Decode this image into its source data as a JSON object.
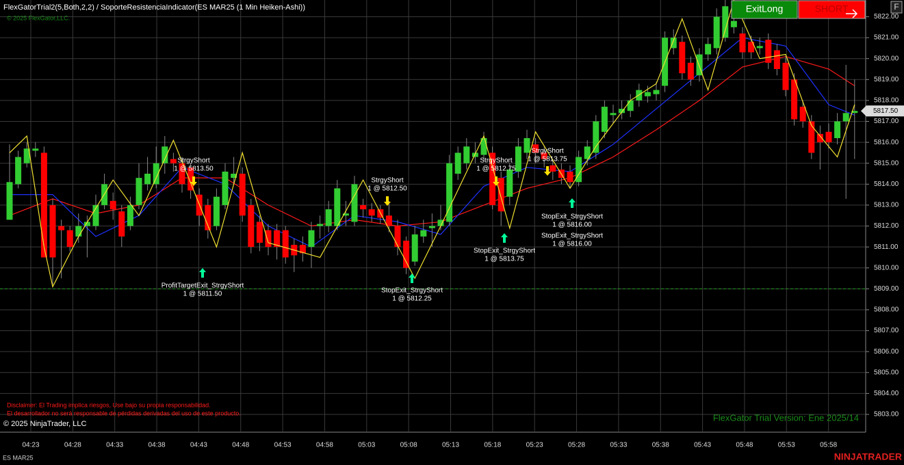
{
  "header": {
    "title": "FlexGatorTrial2(5,Both,2,2) / SoporteResistenciaIndicator(ES MAR25 (1 Min Heiken-Ashi))",
    "subtitle": "© 2025 FlexGator,LLC.",
    "buttons": [
      "ExitLong",
      "SHORT"
    ],
    "corner_button": "F"
  },
  "chart_data": {
    "type": "candlestick",
    "open": [
      5812.3,
      5814.0,
      5815.0,
      5815.6,
      5815.5,
      5813.0,
      5812.0,
      5811.8,
      5811.5,
      5812.0,
      5812.0,
      5813.0,
      5813.2,
      5812.7,
      5812.0,
      5813.0,
      5814.0,
      5814.0,
      5815.0,
      5815.2,
      5815.0,
      5814.8,
      5813.5,
      5813.0,
      5812.0,
      5813.0,
      5814.3,
      5814.5,
      5813.0,
      5812.2,
      5811.8,
      5811.8,
      5811.8,
      5811.1,
      5811.1,
      5811.0,
      5812.0,
      5812.0,
      5812.0,
      5812.5,
      5812.2,
      5813.0,
      5812.8,
      5812.8,
      5812.5,
      5812.0,
      5811.3,
      5810.3,
      5811.5,
      5811.9,
      5812.0,
      5812.2,
      5814.5,
      5815.0,
      5815.3,
      5815.4,
      5815.5,
      5814.3,
      5813.4,
      5814.6,
      5815.5,
      5815.9,
      5815.5,
      5814.9,
      5814.7,
      5814.6,
      5814.1,
      5815.2,
      5815.5,
      5816.5,
      5817.3,
      5817.4,
      5817.5,
      5818.0,
      5818.2,
      5818.3,
      5818.7,
      5820.5,
      5820.8,
      5819.8,
      5819.2,
      5820.2,
      5820.5,
      5821.0,
      5821.5,
      5821.2,
      5820.8,
      5820.5,
      5820.9,
      5820.4,
      5819.8,
      5819.0,
      5817.7,
      5817.0,
      5816.4,
      5816.5,
      5816.2,
      5817.0,
      5817.4
    ],
    "high": [
      5815.9,
      5815.6,
      5816.0,
      5816.0,
      5815.8,
      5813.3,
      5812.3,
      5812.0,
      5812.6,
      5812.5,
      5813.5,
      5814.5,
      5813.6,
      5813.0,
      5813.4,
      5815.0,
      5815.3,
      5815.8,
      5816.3,
      5815.5,
      5815.3,
      5815.0,
      5813.8,
      5813.3,
      5813.8,
      5815.0,
      5815.3,
      5814.8,
      5813.3,
      5812.5,
      5812.1,
      5812.1,
      5812.0,
      5811.4,
      5811.5,
      5812.2,
      5812.5,
      5813.2,
      5814.2,
      5813.2,
      5814.4,
      5813.3,
      5813.1,
      5813.0,
      5813.2,
      5812.3,
      5811.5,
      5812.0,
      5812.3,
      5812.6,
      5813.0,
      5815.4,
      5815.8,
      5816.2,
      5816.0,
      5816.5,
      5815.8,
      5814.6,
      5815.0,
      5816.2,
      5816.6,
      5816.2,
      5815.8,
      5815.2,
      5815.0,
      5814.9,
      5815.6,
      5816.1,
      5817.3,
      5818.0,
      5817.8,
      5818.0,
      5818.3,
      5818.8,
      5818.7,
      5818.9,
      5821.3,
      5821.4,
      5821.1,
      5820.1,
      5820.5,
      5821.0,
      5822.4,
      5822.8,
      5822.2,
      5821.5,
      5821.1,
      5821.0,
      5821.2,
      5820.7,
      5820.1,
      5819.3,
      5818.0,
      5817.3,
      5816.8,
      5816.9,
      5817.4,
      5819.7,
      5819.0
    ],
    "low": [
      5812.3,
      5813.8,
      5814.8,
      5815.3,
      5810.5,
      5809.2,
      5809.5,
      5810.8,
      5811.2,
      5810.5,
      5811.8,
      5812.8,
      5812.3,
      5811.0,
      5811.8,
      5812.8,
      5813.7,
      5813.8,
      5814.5,
      5814.6,
      5813.6,
      5813.3,
      5812.0,
      5811.4,
      5811.8,
      5812.8,
      5814.0,
      5812.2,
      5810.7,
      5810.8,
      5810.6,
      5810.4,
      5810.2,
      5809.8,
      5810.3,
      5810.0,
      5811.4,
      5811.7,
      5811.8,
      5812.0,
      5812.0,
      5812.4,
      5812.2,
      5812.1,
      5811.7,
      5810.6,
      5809.7,
      5810.1,
      5811.2,
      5811.0,
      5811.8,
      5812.0,
      5814.2,
      5814.7,
      5815.0,
      5815.1,
      5812.8,
      5812.0,
      5813.0,
      5814.3,
      5815.2,
      5815.0,
      5814.8,
      5814.2,
      5814.0,
      5813.8,
      5813.9,
      5814.9,
      5815.2,
      5816.2,
      5816.9,
      5817.1,
      5817.2,
      5817.7,
      5817.9,
      5818.0,
      5818.4,
      5820.2,
      5819.0,
      5818.7,
      5818.9,
      5819.9,
      5820.2,
      5820.8,
      5821.2,
      5820.0,
      5820.0,
      5820.2,
      5819.5,
      5819.2,
      5818.2,
      5816.8,
      5816.7,
      5815.2,
      5814.7,
      5815.7,
      5815.9,
      5813.3,
      5815.2
    ],
    "close": [
      5814.1,
      5815.3,
      5815.7,
      5815.7,
      5810.5,
      5810.5,
      5811.8,
      5811.0,
      5812.0,
      5812.2,
      5813.0,
      5814.0,
      5812.8,
      5811.5,
      5813.0,
      5814.3,
      5814.5,
      5815.0,
      5815.8,
      5815.0,
      5814.0,
      5813.7,
      5812.5,
      5811.8,
      5813.4,
      5814.6,
      5814.5,
      5812.5,
      5811.0,
      5811.2,
      5811.0,
      5811.0,
      5810.5,
      5810.6,
      5810.7,
      5811.8,
      5812.1,
      5812.8,
      5813.8,
      5812.6,
      5814.0,
      5812.8,
      5812.5,
      5812.4,
      5812.0,
      5811.0,
      5810.0,
      5811.6,
      5811.8,
      5812.0,
      5812.3,
      5815.0,
      5815.5,
      5815.8,
      5815.5,
      5816.2,
      5813.0,
      5812.7,
      5814.7,
      5815.8,
      5816.2,
      5815.5,
      5815.2,
      5814.6,
      5814.3,
      5814.1,
      5815.3,
      5815.8,
      5817.0,
      5817.7,
      5817.4,
      5817.6,
      5818.0,
      5818.5,
      5818.4,
      5818.5,
      5821.0,
      5821.0,
      5819.3,
      5819.0,
      5820.2,
      5820.7,
      5822.0,
      5822.5,
      5821.8,
      5820.3,
      5820.3,
      5820.6,
      5819.8,
      5819.5,
      5818.5,
      5817.1,
      5817.0,
      5815.5,
      5816.0,
      5816.0,
      5817.0,
      5817.4,
      5817.5
    ],
    "up_color": "#32cd32",
    "down_color": "#ff0000",
    "lines": [
      {
        "color": "#ff1a1a",
        "x": [
          0,
          5,
          10,
          15,
          20,
          25,
          30,
          35,
          40,
          45,
          50,
          55,
          60,
          65,
          70,
          75,
          80,
          85,
          90,
          95,
          98
        ],
        "values": [
          5812.5,
          5813.3,
          5812.6,
          5813.0,
          5814.3,
          5814.3,
          5813.0,
          5812.0,
          5812.3,
          5812.0,
          5812.2,
          5813.0,
          5813.8,
          5814.3,
          5815.3,
          5816.6,
          5818.0,
          5819.6,
          5820.1,
          5819.5,
          5818.7
        ]
      },
      {
        "color": "#1e32ff",
        "x": [
          0,
          5,
          10,
          15,
          20,
          25,
          30,
          35,
          40,
          45,
          50,
          55,
          60,
          65,
          70,
          75,
          80,
          85,
          90,
          95,
          98
        ],
        "values": [
          5813.5,
          5813.5,
          5811.5,
          5812.5,
          5814.8,
          5814.0,
          5812.0,
          5811.0,
          5812.5,
          5812.2,
          5811.6,
          5813.9,
          5814.8,
          5814.6,
          5815.9,
          5817.6,
          5819.3,
          5821.0,
          5820.6,
          5817.8,
          5817.3
        ]
      },
      {
        "color": "#f0e030",
        "x": [
          0,
          2,
          4,
          5,
          8,
          12,
          15,
          19,
          24,
          27,
          30,
          36,
          41,
          47,
          50,
          55,
          58,
          61,
          65,
          68,
          72,
          75,
          78,
          81,
          84,
          87,
          90,
          93,
          96,
          98
        ],
        "values": [
          5815.5,
          5816.3,
          5811.0,
          5809.1,
          5811.5,
          5814.2,
          5812.5,
          5816.1,
          5811.0,
          5815.5,
          5811.2,
          5810.5,
          5814.2,
          5809.5,
          5812.0,
          5816.3,
          5811.9,
          5816.5,
          5813.8,
          5815.8,
          5818.0,
          5818.8,
          5821.9,
          5818.5,
          5822.8,
          5820.0,
          5820.2,
          5816.8,
          5815.3,
          5817.8
        ]
      }
    ],
    "level_line": 5809,
    "last_price": {
      "value": 5817.5,
      "label": "5817.50"
    },
    "ylim": [
      5802.15,
      5822.8
    ],
    "yticks": [
      {
        "value": 5803,
        "label": "5803.00"
      },
      {
        "value": 5804,
        "label": "5804.00"
      },
      {
        "value": 5805,
        "label": "5805.00"
      },
      {
        "value": 5806,
        "label": "5806.00"
      },
      {
        "value": 5807,
        "label": "5807.00"
      },
      {
        "value": 5808,
        "label": "5808.00"
      },
      {
        "value": 5809,
        "label": "5809.00"
      },
      {
        "value": 5810,
        "label": "5810.00"
      },
      {
        "value": 5811,
        "label": "5811.00"
      },
      {
        "value": 5812,
        "label": "5812.00"
      },
      {
        "value": 5813,
        "label": "5813.00"
      },
      {
        "value": 5814,
        "label": "5814.00"
      },
      {
        "value": 5815,
        "label": "5815.00"
      },
      {
        "value": 5816,
        "label": "5816.00"
      },
      {
        "value": 5817,
        "label": "5817.00"
      },
      {
        "value": 5818,
        "label": "5818.00"
      },
      {
        "value": 5819,
        "label": "5819.00"
      },
      {
        "value": 5820,
        "label": "5820.00"
      },
      {
        "value": 5821,
        "label": "5821.00"
      },
      {
        "value": 5822,
        "label": "5822.00"
      }
    ],
    "time_labels": [
      "04:23",
      "04:28",
      "04:33",
      "04:38",
      "04:43",
      "04:48",
      "04:53",
      "04:58",
      "05:03",
      "05:08",
      "05:13",
      "05:18",
      "05:23",
      "05:28",
      "05:33",
      "05:38",
      "05:43",
      "05:48",
      "05:53",
      "05:58"
    ],
    "annotations": [
      {
        "lines": [
          "StrgyShort",
          "1 @ 5813.50"
        ]
      },
      {
        "lines": [
          "ProfitTargetExit_StrgyShort",
          "1 @ 5811.50"
        ]
      },
      {
        "lines": [
          "StrgyShort",
          "1 @ 5812.50"
        ]
      },
      {
        "lines": [
          "StopExit_StrgyShort",
          "1 @ 5812.25"
        ]
      },
      {
        "lines": [
          "StrgyShort",
          "1 @ 5812.75"
        ]
      },
      {
        "lines": [
          "StopExit_StrgyShort",
          "1 @ 5813.75"
        ]
      },
      {
        "lines": [
          "StrgyShort",
          "1 @ 5813.75"
        ]
      },
      {
        "lines": [
          "StopExit_StrgyShort",
          "1 @ 5816.00"
        ]
      },
      {
        "lines": [
          "StopExit_StrgyShort",
          "1 @ 5816.00"
        ]
      }
    ]
  },
  "footer": {
    "disclaimer": [
      "Disclaimer: El Trading implica riesgos, Use bajo su propia responsabilidad.",
      "El desarrollador no será responsable de pérdidas derivadas del uso de este producto."
    ],
    "copyright": "© 2025 NinjaTrader, LLC",
    "trial": "FlexGator Trial Version: Ene 2025/14",
    "instrument": "ES MAR25",
    "brand": "NINJATRADER"
  }
}
